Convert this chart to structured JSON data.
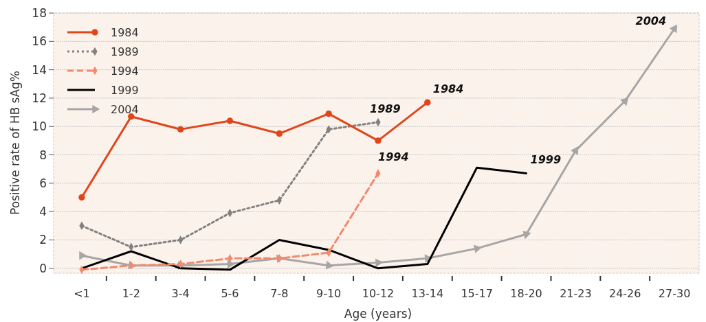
{
  "chart_data": {
    "type": "line",
    "xlabel": "Age (years)",
    "ylabel": "Positive rate of HB sAg%",
    "categories": [
      "<1",
      "1-2",
      "3-4",
      "5-6",
      "7-8",
      "9-10",
      "10-12",
      "13-14",
      "15-17",
      "18-20",
      "21-23",
      "24-26",
      "27-30"
    ],
    "series": [
      {
        "name": "1984",
        "color": "#e0461a",
        "marker": "circle",
        "line_style": "solid",
        "values": [
          5.0,
          10.7,
          9.8,
          10.4,
          9.5,
          10.9,
          9.0,
          11.7,
          null,
          null,
          null,
          null,
          null
        ]
      },
      {
        "name": "1989",
        "color": "#808080",
        "marker": "diamond",
        "line_style": "dotted",
        "values": [
          3.0,
          1.5,
          2.0,
          3.9,
          4.8,
          9.8,
          10.3,
          null,
          null,
          null,
          null,
          null,
          null
        ]
      },
      {
        "name": "1994",
        "color": "#f28a6e",
        "marker": "diamond",
        "line_style": "dashed",
        "values": [
          -0.1,
          0.2,
          0.3,
          0.7,
          0.7,
          1.1,
          6.7,
          null,
          null,
          null,
          null,
          null,
          null
        ]
      },
      {
        "name": "1999",
        "color": "#000000",
        "marker": "none",
        "line_style": "solid",
        "values": [
          0,
          1.2,
          0,
          -0.1,
          2.0,
          1.3,
          0,
          0.3,
          7.1,
          6.7,
          null,
          null,
          null
        ]
      },
      {
        "name": "2004",
        "color": "#a6a6a6",
        "marker": "triangle",
        "line_style": "solid",
        "values": [
          0.9,
          0.2,
          0.2,
          0.3,
          0.7,
          0.2,
          0.4,
          0.7,
          1.4,
          2.4,
          8.3,
          11.8,
          16.9
        ]
      }
    ],
    "ylim": [
      -0.3,
      18
    ],
    "yticks": [
      0,
      2,
      4,
      6,
      8,
      10,
      12,
      14,
      16,
      18
    ],
    "grid": "y",
    "legend": "top left",
    "annotations": [
      {
        "text": "1984",
        "x": "13-14",
        "y": 11.7
      },
      {
        "text": "1989",
        "x": "10-12",
        "y": 10.3
      },
      {
        "text": "1994",
        "x": "10-12",
        "y": 6.7
      },
      {
        "text": "1999",
        "x": "18-20",
        "y": 6.7
      },
      {
        "text": "2004",
        "x": "27-30",
        "y": 16.9
      }
    ]
  }
}
